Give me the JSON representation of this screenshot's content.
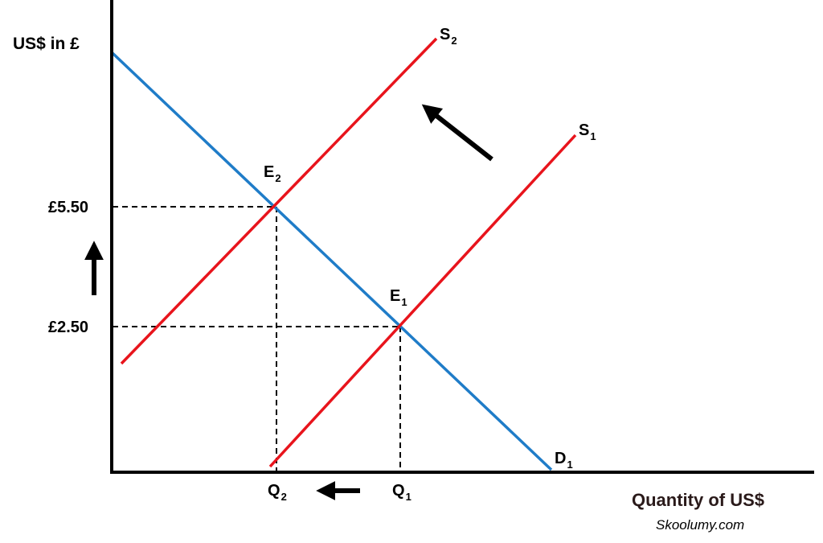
{
  "colors": {
    "supply": "#e8141c",
    "demand": "#1f7cc8",
    "axis": "#000000",
    "guide": "#000000"
  },
  "axes": {
    "y_label": "US$ in £",
    "x_label": "Quantity of US$"
  },
  "price_ticks": [
    {
      "label": "£5.50",
      "value": 5.5
    },
    {
      "label": "£2.50",
      "value": 2.5
    }
  ],
  "quantity_ticks": [
    {
      "main": "Q",
      "sub": "2"
    },
    {
      "main": "Q",
      "sub": "1"
    }
  ],
  "curves": {
    "s1": {
      "main": "S",
      "sub": "1"
    },
    "s2": {
      "main": "S",
      "sub": "2"
    },
    "d1": {
      "main": "D",
      "sub": "1"
    }
  },
  "equilibria": {
    "e1": {
      "main": "E",
      "sub": "1"
    },
    "e2": {
      "main": "E",
      "sub": "2"
    }
  },
  "arrows": {
    "supply_shift": "arrow-up-left-icon",
    "price_rise": "arrow-up-icon",
    "quantity_fall": "arrow-left-icon"
  },
  "credit": "Skoolumy.com"
}
